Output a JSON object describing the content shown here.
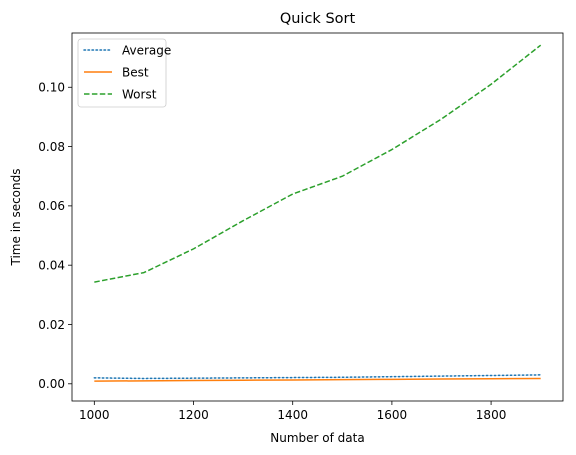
{
  "chart_data": {
    "type": "line",
    "title": "Quick Sort",
    "xlabel": "Number of data",
    "ylabel": "Time in seconds",
    "x": [
      1000,
      1100,
      1200,
      1300,
      1400,
      1500,
      1600,
      1700,
      1800,
      1900
    ],
    "xlim": [
      955,
      1945
    ],
    "ylim": [
      -0.0058,
      0.1183
    ],
    "xticks": [
      1000,
      1200,
      1400,
      1600,
      1800
    ],
    "xtick_labels": [
      "1000",
      "1200",
      "1400",
      "1600",
      "1800"
    ],
    "yticks": [
      0.0,
      0.02,
      0.04,
      0.06,
      0.08,
      0.1
    ],
    "ytick_labels": [
      "0.00",
      "0.02",
      "0.04",
      "0.06",
      "0.08",
      "0.10"
    ],
    "grid": false,
    "legend_position": "top-left",
    "series": [
      {
        "name": "Average",
        "style": "dotted",
        "color": "#1f77b4",
        "values": [
          0.002,
          0.0018,
          0.0019,
          0.002,
          0.0021,
          0.0022,
          0.0024,
          0.0026,
          0.0028,
          0.003
        ]
      },
      {
        "name": "Best",
        "style": "solid",
        "color": "#ff7f0e",
        "values": [
          0.0009,
          0.001,
          0.0011,
          0.0012,
          0.0013,
          0.0014,
          0.0015,
          0.0016,
          0.0017,
          0.0018
        ]
      },
      {
        "name": "Worst",
        "style": "dashed",
        "color": "#2ca02c",
        "values": [
          0.0343,
          0.0375,
          0.0455,
          0.055,
          0.064,
          0.07,
          0.079,
          0.0893,
          0.101,
          0.1142
        ]
      }
    ]
  }
}
